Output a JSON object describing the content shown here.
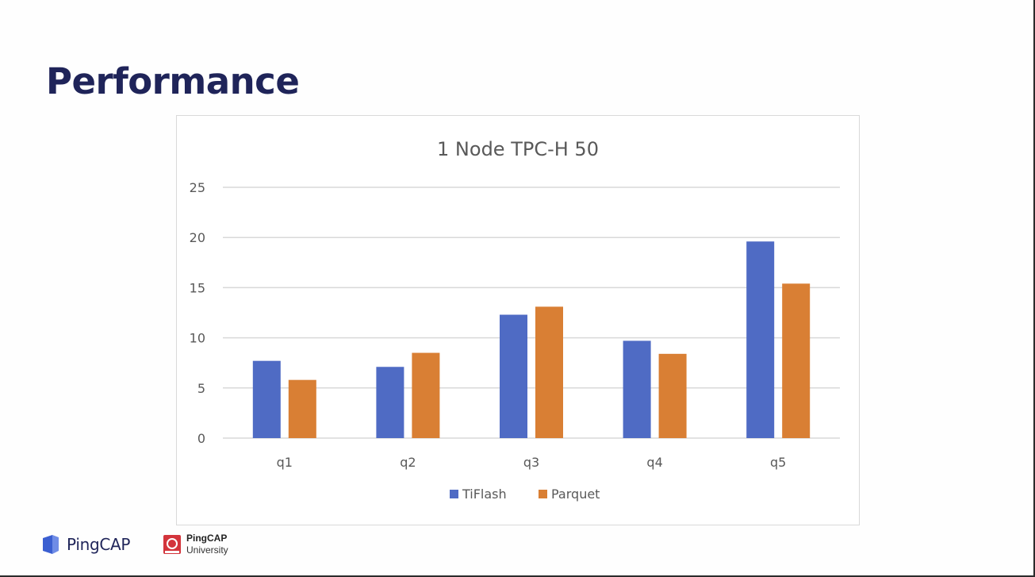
{
  "slide": {
    "title": "Performance"
  },
  "footer": {
    "brand": "PingCAP",
    "university_line1": "PingCAP",
    "university_line2": "University"
  },
  "colors": {
    "title": "#1f2459",
    "tiflash": "#4f6bc4",
    "parquet": "#d97f34",
    "grid": "#d9d9d9"
  },
  "chart_data": {
    "type": "bar",
    "title": "1 Node TPC-H 50",
    "xlabel": "",
    "ylabel": "",
    "categories": [
      "q1",
      "q2",
      "q3",
      "q4",
      "q5"
    ],
    "series": [
      {
        "name": "TiFlash",
        "color": "#4f6bc4",
        "values": [
          7.7,
          7.1,
          12.3,
          9.7,
          19.6
        ]
      },
      {
        "name": "Parquet",
        "color": "#d97f34",
        "values": [
          5.8,
          8.5,
          13.1,
          8.4,
          15.4
        ]
      }
    ],
    "ylim": [
      0,
      25
    ],
    "yticks": [
      "0",
      "5",
      "10",
      "15",
      "20",
      "25"
    ],
    "grid": true,
    "legend_position": "bottom"
  }
}
